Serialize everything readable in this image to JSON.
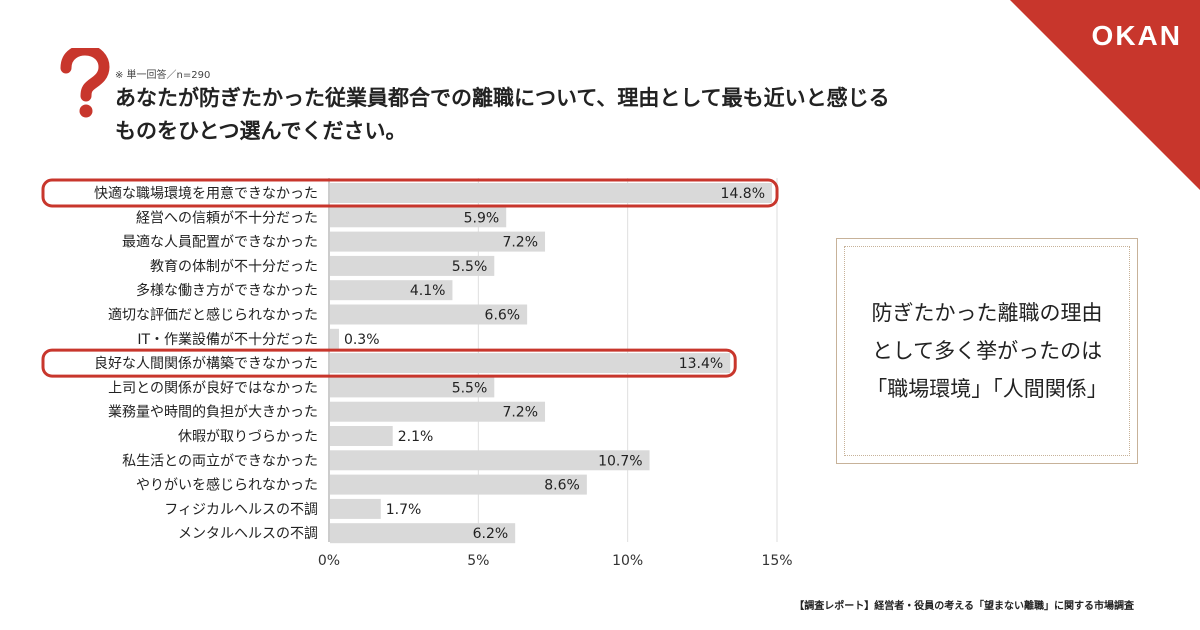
{
  "brand": {
    "logo": "OKAN",
    "accent": "#c8362c",
    "bar_color": "#d9d9d9",
    "highlight_color": "#c8362c"
  },
  "header": {
    "note": "※ 単一回答／n=290",
    "title_line1": "あなたが防ぎたかった従業員都合での離職について、理由として最も近いと感じる",
    "title_line2": "ものをひとつ選んでください。",
    "icon": "question-mark-icon"
  },
  "chart_data": {
    "type": "bar",
    "orientation": "horizontal",
    "categories": [
      "快適な職場環境を用意できなかった",
      "経営への信頼が不十分だった",
      "最適な人員配置ができなかった",
      "教育の体制が不十分だった",
      "多様な働き方ができなかった",
      "適切な評価だと感じられなかった",
      "IT・作業設備が不十分だった",
      "良好な人間関係が構築できなかった",
      "上司との関係が良好ではなかった",
      "業務量や時間的負担が大きかった",
      "休暇が取りづらかった",
      "私生活との両立ができなかった",
      "やりがいを感じられなかった",
      "フィジカルヘルスの不調",
      "メンタルヘルスの不調"
    ],
    "values": [
      14.8,
      5.9,
      7.2,
      5.5,
      4.1,
      6.6,
      0.3,
      13.4,
      5.5,
      7.2,
      2.1,
      10.7,
      8.6,
      1.7,
      6.2
    ],
    "value_labels": [
      "14.8%",
      "5.9%",
      "7.2%",
      "5.5%",
      "4.1%",
      "6.6%",
      "0.3%",
      "13.4%",
      "5.5%",
      "7.2%",
      "2.1%",
      "10.7%",
      "8.6%",
      "1.7%",
      "6.2%"
    ],
    "highlighted": [
      0,
      7
    ],
    "xlim": [
      0,
      15
    ],
    "xticks": [
      0,
      5,
      10,
      15
    ],
    "xtick_labels": [
      "0%",
      "5%",
      "10%",
      "15%"
    ],
    "grid": true,
    "unit": "%"
  },
  "callout": {
    "line1": "防ぎたかった離職の理由",
    "line2": "として多く挙がったのは",
    "line3": "「職場環境」「人間関係」"
  },
  "footer": {
    "source": "【調査レポート】経営者・役員の考える「望まない離職」に関する市場調査"
  }
}
